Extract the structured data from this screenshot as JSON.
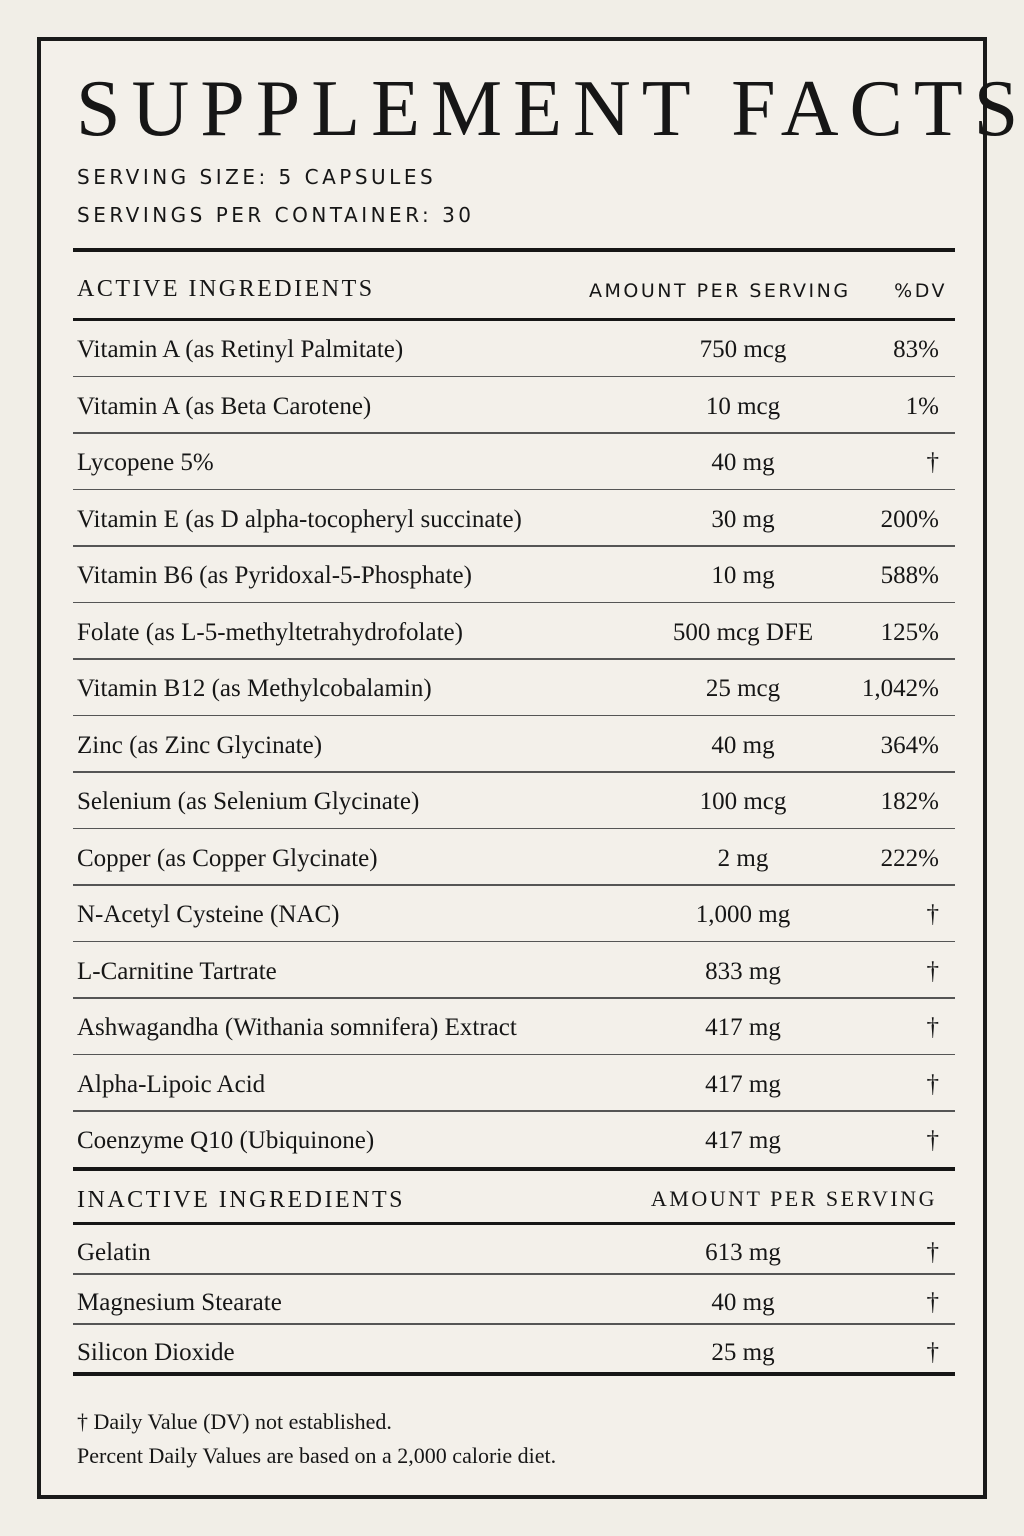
{
  "title": "SUPPLEMENT FACTS",
  "serving_size": "SERVING SIZE: 5 CAPSULES",
  "servings_per_container": "SERVINGS PER CONTAINER: 30",
  "active": {
    "header_name": "ACTIVE INGREDIENTS",
    "header_amount": "AMOUNT PER SERVING",
    "header_dv": "%DV",
    "rows": [
      {
        "name": "Vitamin A (as Retinyl Palmitate)",
        "amount": "750 mcg",
        "dv": "83%"
      },
      {
        "name": "Vitamin A (as Beta Carotene)",
        "amount": "10 mcg",
        "dv": "1%"
      },
      {
        "name": "Lycopene 5%",
        "amount": "40 mg",
        "dv": "†"
      },
      {
        "name": "Vitamin E (as D alpha-tocopheryl succinate)",
        "amount": "30 mg",
        "dv": "200%"
      },
      {
        "name": "Vitamin B6 (as Pyridoxal-5-Phosphate)",
        "amount": "10 mg",
        "dv": "588%"
      },
      {
        "name": "Folate (as L-5-methyltetrahydrofolate)",
        "amount": "500 mcg DFE",
        "dv": "125%"
      },
      {
        "name": "Vitamin B12 (as Methylcobalamin)",
        "amount": "25 mcg",
        "dv": "1,042%"
      },
      {
        "name": "Zinc (as Zinc Glycinate)",
        "amount": "40 mg",
        "dv": "364%"
      },
      {
        "name": "Selenium (as Selenium Glycinate)",
        "amount": "100 mcg",
        "dv": "182%"
      },
      {
        "name": "Copper (as Copper Glycinate)",
        "amount": "2 mg",
        "dv": "222%"
      },
      {
        "name": "N-Acetyl Cysteine (NAC)",
        "amount": "1,000 mg",
        "dv": "†"
      },
      {
        "name": "L-Carnitine Tartrate",
        "amount": "833 mg",
        "dv": "†"
      },
      {
        "name": "Ashwagandha (Withania somnifera) Extract",
        "amount": "417 mg",
        "dv": "†"
      },
      {
        "name": "Alpha-Lipoic Acid",
        "amount": "417 mg",
        "dv": "†"
      },
      {
        "name": "Coenzyme Q10 (Ubiquinone)",
        "amount": "417 mg",
        "dv": "†"
      }
    ]
  },
  "inactive": {
    "header_name": "INACTIVE INGREDIENTS",
    "header_amount": "AMOUNT PER SERVING",
    "rows": [
      {
        "name": "Gelatin",
        "amount": "613 mg",
        "dv": "†"
      },
      {
        "name": "Magnesium Stearate",
        "amount": "40 mg",
        "dv": "†"
      },
      {
        "name": "Silicon Dioxide",
        "amount": "25 mg",
        "dv": "†"
      }
    ]
  },
  "footnote": {
    "line1": "† Daily Value (DV) not established.",
    "line2": "Percent Daily Values are based on a 2,000 calorie diet."
  }
}
